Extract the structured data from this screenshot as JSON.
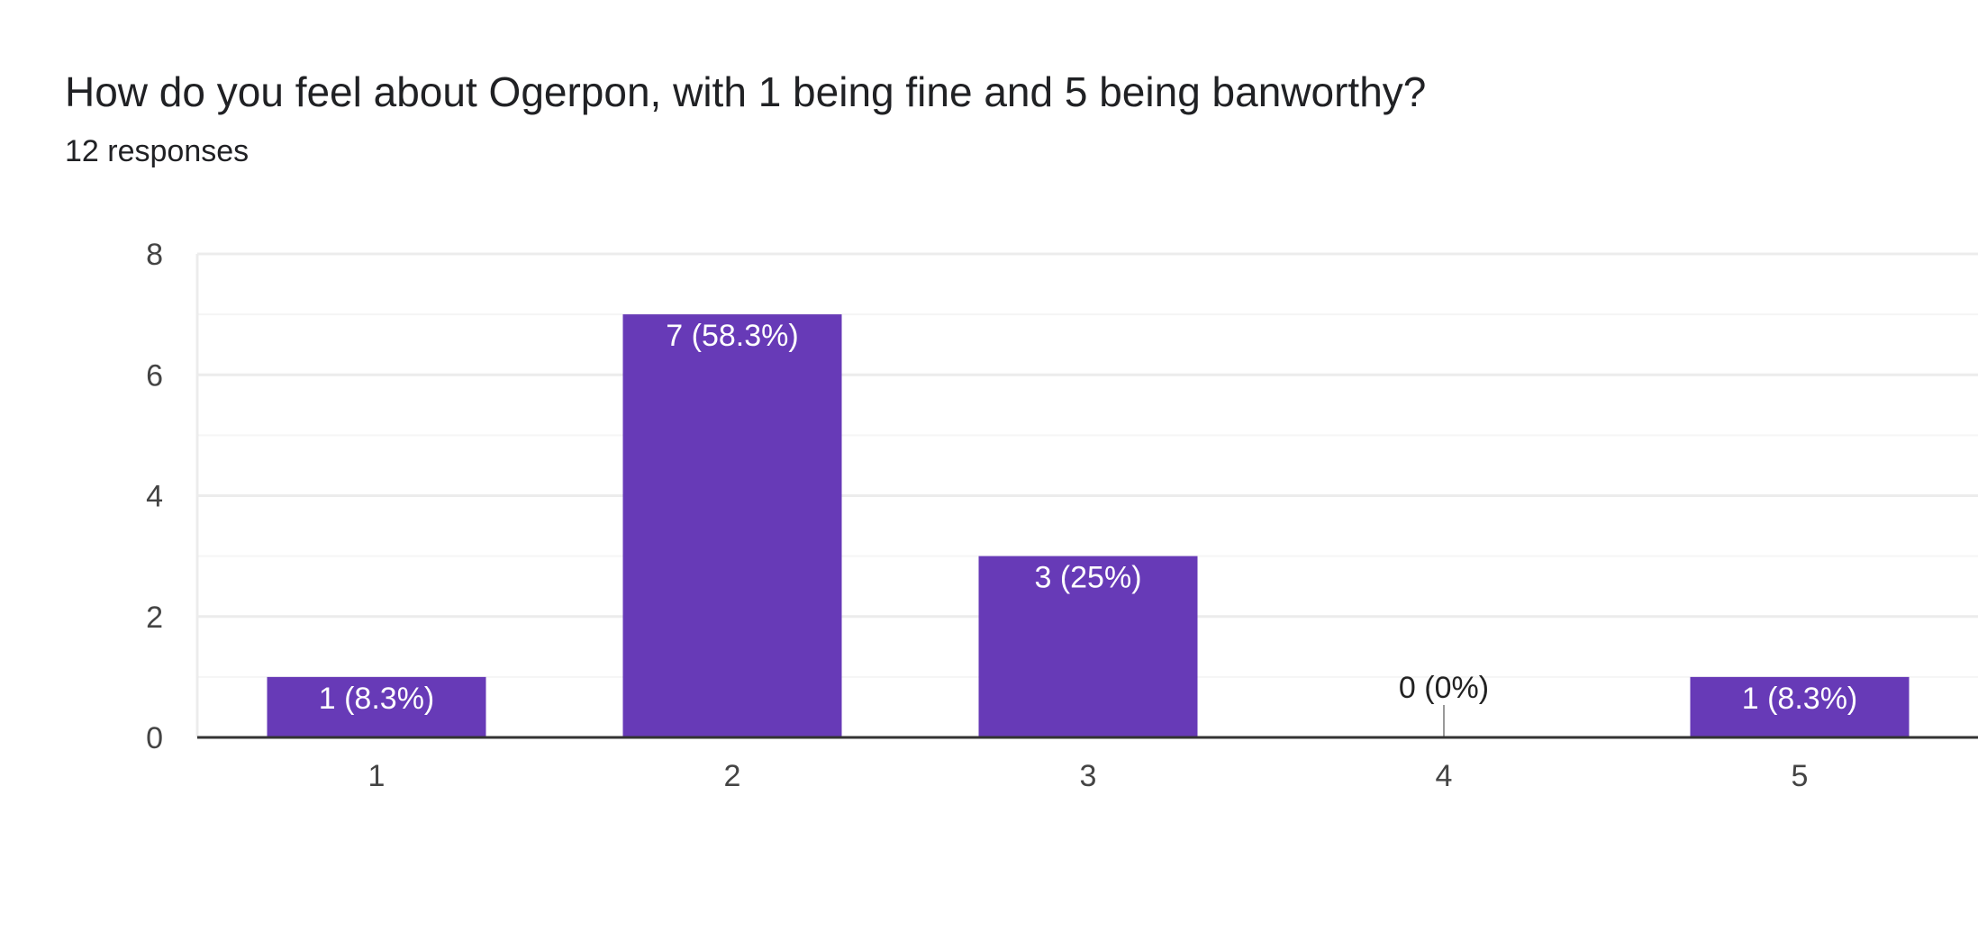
{
  "header": {
    "title": "How do you feel about Ogerpon, with 1 being fine and 5 being banworthy?",
    "subtitle": "12 responses"
  },
  "colors": {
    "bar": "#673ab7",
    "label_inside": "#ffffff",
    "label_outside": "#222222",
    "grid": "#ececec",
    "minor_grid": "#f5f5f5",
    "axis": "#333333"
  },
  "chart_data": {
    "type": "bar",
    "categories": [
      "1",
      "2",
      "3",
      "4",
      "5"
    ],
    "values": [
      1,
      7,
      3,
      0,
      1
    ],
    "data_labels": [
      "1 (8.3%)",
      "7 (58.3%)",
      "3 (25%)",
      "0 (0%)",
      "1 (8.3%)"
    ],
    "ylim": [
      0,
      8
    ],
    "yticks": [
      0,
      2,
      4,
      6,
      8
    ],
    "grid": true,
    "title": "",
    "xlabel": "",
    "ylabel": ""
  }
}
